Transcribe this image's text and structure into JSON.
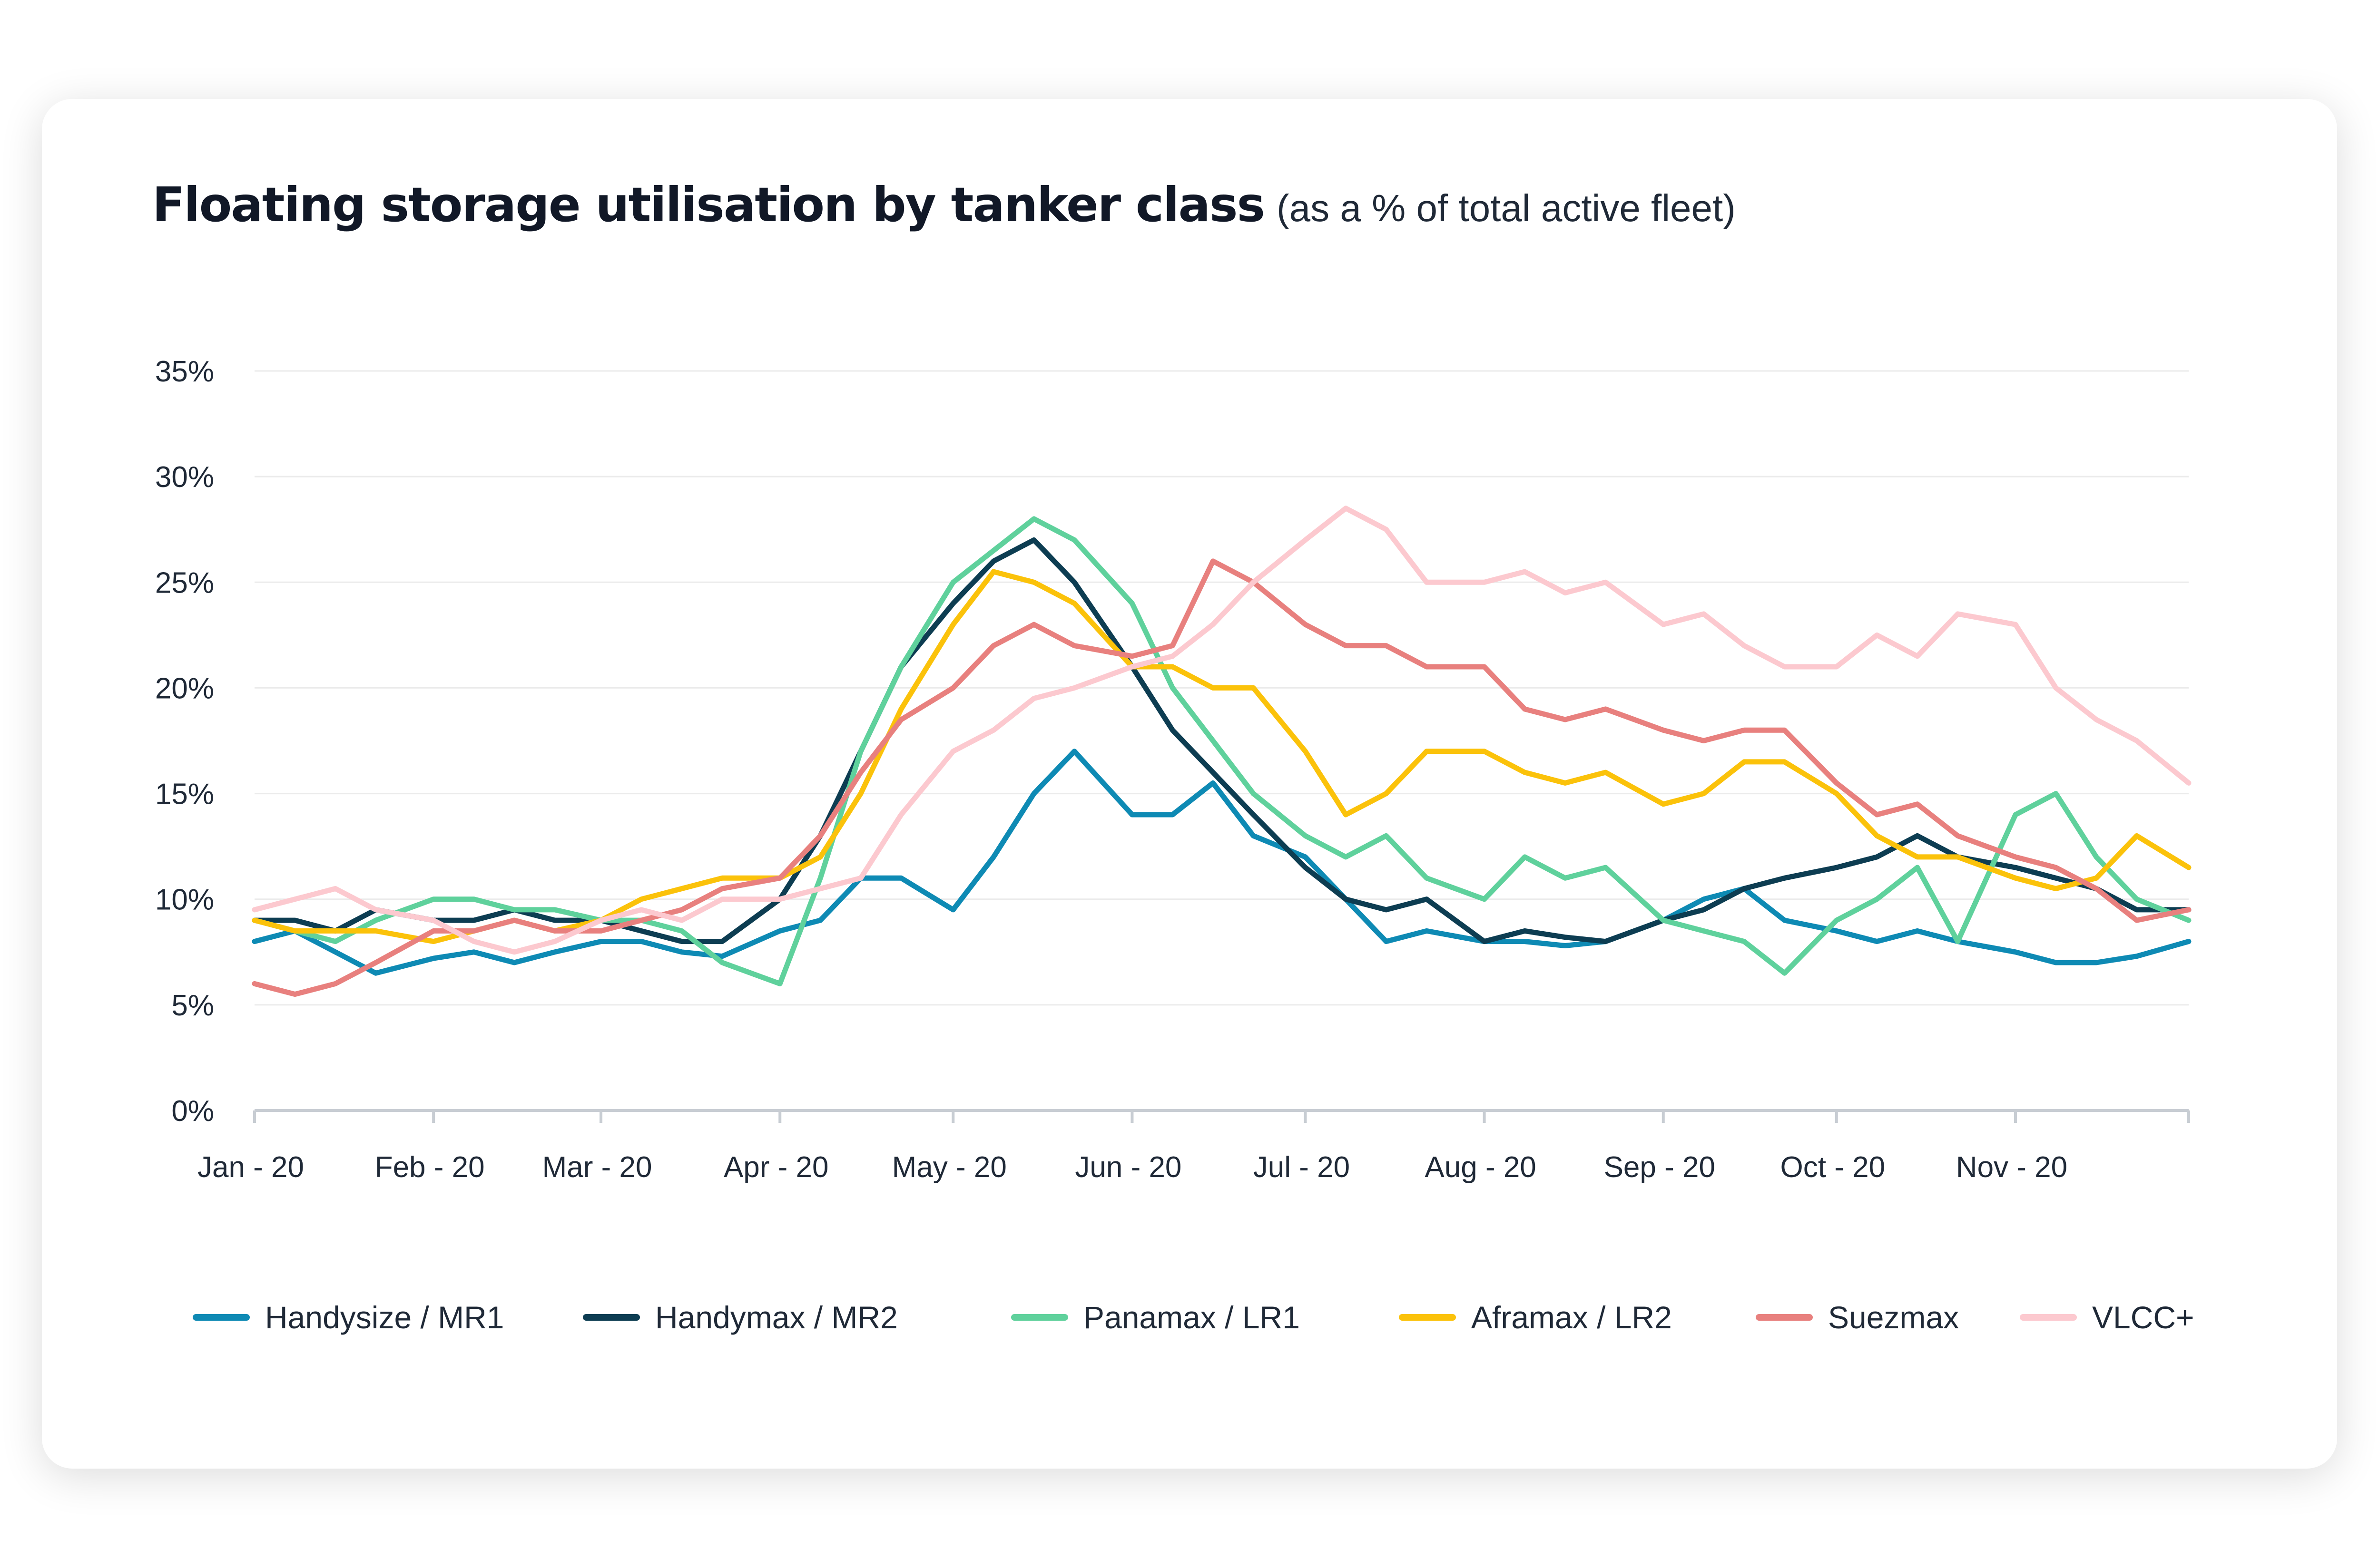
{
  "title": "Floating storage utilisation by tanker class",
  "subtitle": "(as a % of total active fleet)",
  "colors": {
    "Handysize / MR1": "#0e8ab4",
    "Handymax / MR2": "#0d3d52",
    "Panamax / LR1": "#5fd19c",
    "Aframax / LR2": "#fbc20a",
    "Suezmax": "#e8807e",
    "VLCC+": "#fcc9cf"
  },
  "chart_data": {
    "type": "line",
    "ylim": [
      0,
      35
    ],
    "y_ticks": [
      "0%",
      "5%",
      "10%",
      "15%",
      "20%",
      "25%",
      "30%",
      "35%"
    ],
    "x_ticks": [
      "Jan - 20",
      "Feb - 20",
      "Mar - 20",
      "Apr - 20",
      "May - 20",
      "Jun - 20",
      "Jul - 20",
      "Aug - 20",
      "Sep - 20",
      "Oct - 20",
      "Nov - 20"
    ],
    "x_range": [
      "2020-01-01",
      "2020-12-01"
    ],
    "grid": "horizontal",
    "legend": "bottom",
    "series": [
      {
        "name": "Handysize / MR1",
        "points": [
          [
            "2020-01-01",
            8
          ],
          [
            "2020-01-08",
            8.5
          ],
          [
            "2020-01-15",
            7.5
          ],
          [
            "2020-01-22",
            6.5
          ],
          [
            "2020-02-01",
            7.2
          ],
          [
            "2020-02-08",
            7.5
          ],
          [
            "2020-02-15",
            7
          ],
          [
            "2020-02-22",
            7.5
          ],
          [
            "2020-03-01",
            8
          ],
          [
            "2020-03-08",
            8
          ],
          [
            "2020-03-15",
            7.5
          ],
          [
            "2020-03-22",
            7.3
          ],
          [
            "2020-04-01",
            8.5
          ],
          [
            "2020-04-08",
            9
          ],
          [
            "2020-04-15",
            11
          ],
          [
            "2020-04-22",
            11
          ],
          [
            "2020-05-01",
            9.5
          ],
          [
            "2020-05-08",
            12
          ],
          [
            "2020-05-15",
            15
          ],
          [
            "2020-05-22",
            17
          ],
          [
            "2020-06-01",
            14
          ],
          [
            "2020-06-08",
            14
          ],
          [
            "2020-06-15",
            15.5
          ],
          [
            "2020-06-22",
            13
          ],
          [
            "2020-07-01",
            12
          ],
          [
            "2020-07-08",
            10
          ],
          [
            "2020-07-15",
            8
          ],
          [
            "2020-07-22",
            8.5
          ],
          [
            "2020-08-01",
            8
          ],
          [
            "2020-08-08",
            8
          ],
          [
            "2020-08-15",
            7.8
          ],
          [
            "2020-08-22",
            8
          ],
          [
            "2020-09-01",
            9
          ],
          [
            "2020-09-08",
            10
          ],
          [
            "2020-09-15",
            10.5
          ],
          [
            "2020-09-22",
            9
          ],
          [
            "2020-10-01",
            8.5
          ],
          [
            "2020-10-08",
            8
          ],
          [
            "2020-10-15",
            8.5
          ],
          [
            "2020-10-22",
            8
          ],
          [
            "2020-11-01",
            7.5
          ],
          [
            "2020-11-08",
            7
          ],
          [
            "2020-11-15",
            7
          ],
          [
            "2020-11-22",
            7.3
          ],
          [
            "2020-12-01",
            8
          ]
        ]
      },
      {
        "name": "Handymax / MR2",
        "points": [
          [
            "2020-01-01",
            9
          ],
          [
            "2020-01-08",
            9
          ],
          [
            "2020-01-15",
            8.5
          ],
          [
            "2020-01-22",
            9.5
          ],
          [
            "2020-02-01",
            9
          ],
          [
            "2020-02-08",
            9
          ],
          [
            "2020-02-15",
            9.5
          ],
          [
            "2020-02-22",
            9
          ],
          [
            "2020-03-01",
            9
          ],
          [
            "2020-03-08",
            8.5
          ],
          [
            "2020-03-15",
            8
          ],
          [
            "2020-03-22",
            8
          ],
          [
            "2020-04-01",
            10
          ],
          [
            "2020-04-08",
            13
          ],
          [
            "2020-04-15",
            17
          ],
          [
            "2020-04-22",
            21
          ],
          [
            "2020-05-01",
            24
          ],
          [
            "2020-05-08",
            26
          ],
          [
            "2020-05-15",
            27
          ],
          [
            "2020-05-22",
            25
          ],
          [
            "2020-06-01",
            21
          ],
          [
            "2020-06-08",
            18
          ],
          [
            "2020-06-15",
            16
          ],
          [
            "2020-06-22",
            14
          ],
          [
            "2020-07-01",
            11.5
          ],
          [
            "2020-07-08",
            10
          ],
          [
            "2020-07-15",
            9.5
          ],
          [
            "2020-07-22",
            10
          ],
          [
            "2020-08-01",
            8
          ],
          [
            "2020-08-08",
            8.5
          ],
          [
            "2020-08-15",
            8.2
          ],
          [
            "2020-08-22",
            8
          ],
          [
            "2020-09-01",
            9
          ],
          [
            "2020-09-08",
            9.5
          ],
          [
            "2020-09-15",
            10.5
          ],
          [
            "2020-09-22",
            11
          ],
          [
            "2020-10-01",
            11.5
          ],
          [
            "2020-10-08",
            12
          ],
          [
            "2020-10-15",
            13
          ],
          [
            "2020-10-22",
            12
          ],
          [
            "2020-11-01",
            11.5
          ],
          [
            "2020-11-08",
            11
          ],
          [
            "2020-11-15",
            10.5
          ],
          [
            "2020-11-22",
            9.5
          ],
          [
            "2020-12-01",
            9.5
          ]
        ]
      },
      {
        "name": "Panamax / LR1",
        "points": [
          [
            "2020-01-01",
            9
          ],
          [
            "2020-01-08",
            8.5
          ],
          [
            "2020-01-15",
            8
          ],
          [
            "2020-01-22",
            9
          ],
          [
            "2020-02-01",
            10
          ],
          [
            "2020-02-08",
            10
          ],
          [
            "2020-02-15",
            9.5
          ],
          [
            "2020-02-22",
            9.5
          ],
          [
            "2020-03-01",
            9
          ],
          [
            "2020-03-08",
            9
          ],
          [
            "2020-03-15",
            8.5
          ],
          [
            "2020-03-22",
            7
          ],
          [
            "2020-04-01",
            6
          ],
          [
            "2020-04-08",
            11
          ],
          [
            "2020-04-15",
            17
          ],
          [
            "2020-04-22",
            21
          ],
          [
            "2020-05-01",
            25
          ],
          [
            "2020-05-08",
            26.5
          ],
          [
            "2020-05-15",
            28
          ],
          [
            "2020-05-22",
            27
          ],
          [
            "2020-06-01",
            24
          ],
          [
            "2020-06-08",
            20
          ],
          [
            "2020-06-15",
            17.5
          ],
          [
            "2020-06-22",
            15
          ],
          [
            "2020-07-01",
            13
          ],
          [
            "2020-07-08",
            12
          ],
          [
            "2020-07-15",
            13
          ],
          [
            "2020-07-22",
            11
          ],
          [
            "2020-08-01",
            10
          ],
          [
            "2020-08-08",
            12
          ],
          [
            "2020-08-15",
            11
          ],
          [
            "2020-08-22",
            11.5
          ],
          [
            "2020-09-01",
            9
          ],
          [
            "2020-09-08",
            8.5
          ],
          [
            "2020-09-15",
            8
          ],
          [
            "2020-09-22",
            6.5
          ],
          [
            "2020-10-01",
            9
          ],
          [
            "2020-10-08",
            10
          ],
          [
            "2020-10-15",
            11.5
          ],
          [
            "2020-10-22",
            8
          ],
          [
            "2020-11-01",
            14
          ],
          [
            "2020-11-08",
            15
          ],
          [
            "2020-11-15",
            12
          ],
          [
            "2020-11-22",
            10
          ],
          [
            "2020-12-01",
            9
          ]
        ]
      },
      {
        "name": "Aframax / LR2",
        "points": [
          [
            "2020-01-01",
            9
          ],
          [
            "2020-01-08",
            8.5
          ],
          [
            "2020-01-15",
            8.5
          ],
          [
            "2020-01-22",
            8.5
          ],
          [
            "2020-02-01",
            8
          ],
          [
            "2020-02-08",
            8.5
          ],
          [
            "2020-02-15",
            9
          ],
          [
            "2020-02-22",
            8.5
          ],
          [
            "2020-03-01",
            9
          ],
          [
            "2020-03-08",
            10
          ],
          [
            "2020-03-15",
            10.5
          ],
          [
            "2020-03-22",
            11
          ],
          [
            "2020-04-01",
            11
          ],
          [
            "2020-04-08",
            12
          ],
          [
            "2020-04-15",
            15
          ],
          [
            "2020-04-22",
            19
          ],
          [
            "2020-05-01",
            23
          ],
          [
            "2020-05-08",
            25.5
          ],
          [
            "2020-05-15",
            25
          ],
          [
            "2020-05-22",
            24
          ],
          [
            "2020-06-01",
            21
          ],
          [
            "2020-06-08",
            21
          ],
          [
            "2020-06-15",
            20
          ],
          [
            "2020-06-22",
            20
          ],
          [
            "2020-07-01",
            17
          ],
          [
            "2020-07-08",
            14
          ],
          [
            "2020-07-15",
            15
          ],
          [
            "2020-07-22",
            17
          ],
          [
            "2020-08-01",
            17
          ],
          [
            "2020-08-08",
            16
          ],
          [
            "2020-08-15",
            15.5
          ],
          [
            "2020-08-22",
            16
          ],
          [
            "2020-09-01",
            14.5
          ],
          [
            "2020-09-08",
            15
          ],
          [
            "2020-09-15",
            16.5
          ],
          [
            "2020-09-22",
            16.5
          ],
          [
            "2020-10-01",
            15
          ],
          [
            "2020-10-08",
            13
          ],
          [
            "2020-10-15",
            12
          ],
          [
            "2020-10-22",
            12
          ],
          [
            "2020-11-01",
            11
          ],
          [
            "2020-11-08",
            10.5
          ],
          [
            "2020-11-15",
            11
          ],
          [
            "2020-11-22",
            13
          ],
          [
            "2020-12-01",
            11.5
          ]
        ]
      },
      {
        "name": "Suezmax",
        "points": [
          [
            "2020-01-01",
            6
          ],
          [
            "2020-01-08",
            5.5
          ],
          [
            "2020-01-15",
            6
          ],
          [
            "2020-01-22",
            7
          ],
          [
            "2020-02-01",
            8.5
          ],
          [
            "2020-02-08",
            8.5
          ],
          [
            "2020-02-15",
            9
          ],
          [
            "2020-02-22",
            8.5
          ],
          [
            "2020-03-01",
            8.5
          ],
          [
            "2020-03-08",
            9
          ],
          [
            "2020-03-15",
            9.5
          ],
          [
            "2020-03-22",
            10.5
          ],
          [
            "2020-04-01",
            11
          ],
          [
            "2020-04-08",
            13
          ],
          [
            "2020-04-15",
            16
          ],
          [
            "2020-04-22",
            18.5
          ],
          [
            "2020-05-01",
            20
          ],
          [
            "2020-05-08",
            22
          ],
          [
            "2020-05-15",
            23
          ],
          [
            "2020-05-22",
            22
          ],
          [
            "2020-06-01",
            21.5
          ],
          [
            "2020-06-08",
            22
          ],
          [
            "2020-06-15",
            26
          ],
          [
            "2020-06-22",
            25
          ],
          [
            "2020-07-01",
            23
          ],
          [
            "2020-07-08",
            22
          ],
          [
            "2020-07-15",
            22
          ],
          [
            "2020-07-22",
            21
          ],
          [
            "2020-08-01",
            21
          ],
          [
            "2020-08-08",
            19
          ],
          [
            "2020-08-15",
            18.5
          ],
          [
            "2020-08-22",
            19
          ],
          [
            "2020-09-01",
            18
          ],
          [
            "2020-09-08",
            17.5
          ],
          [
            "2020-09-15",
            18
          ],
          [
            "2020-09-22",
            18
          ],
          [
            "2020-10-01",
            15.5
          ],
          [
            "2020-10-08",
            14
          ],
          [
            "2020-10-15",
            14.5
          ],
          [
            "2020-10-22",
            13
          ],
          [
            "2020-11-01",
            12
          ],
          [
            "2020-11-08",
            11.5
          ],
          [
            "2020-11-15",
            10.5
          ],
          [
            "2020-11-22",
            9
          ],
          [
            "2020-12-01",
            9.5
          ]
        ]
      },
      {
        "name": "VLCC+",
        "points": [
          [
            "2020-01-01",
            9.5
          ],
          [
            "2020-01-08",
            10
          ],
          [
            "2020-01-15",
            10.5
          ],
          [
            "2020-01-22",
            9.5
          ],
          [
            "2020-02-01",
            9
          ],
          [
            "2020-02-08",
            8
          ],
          [
            "2020-02-15",
            7.5
          ],
          [
            "2020-02-22",
            8
          ],
          [
            "2020-03-01",
            9
          ],
          [
            "2020-03-08",
            9.5
          ],
          [
            "2020-03-15",
            9
          ],
          [
            "2020-03-22",
            10
          ],
          [
            "2020-04-01",
            10
          ],
          [
            "2020-04-08",
            10.5
          ],
          [
            "2020-04-15",
            11
          ],
          [
            "2020-04-22",
            14
          ],
          [
            "2020-05-01",
            17
          ],
          [
            "2020-05-08",
            18
          ],
          [
            "2020-05-15",
            19.5
          ],
          [
            "2020-05-22",
            20
          ],
          [
            "2020-06-01",
            21
          ],
          [
            "2020-06-08",
            21.5
          ],
          [
            "2020-06-15",
            23
          ],
          [
            "2020-06-22",
            25
          ],
          [
            "2020-07-01",
            27
          ],
          [
            "2020-07-08",
            28.5
          ],
          [
            "2020-07-15",
            27.5
          ],
          [
            "2020-07-22",
            25
          ],
          [
            "2020-08-01",
            25
          ],
          [
            "2020-08-08",
            25.5
          ],
          [
            "2020-08-15",
            24.5
          ],
          [
            "2020-08-22",
            25
          ],
          [
            "2020-09-01",
            23
          ],
          [
            "2020-09-08",
            23.5
          ],
          [
            "2020-09-15",
            22
          ],
          [
            "2020-09-22",
            21
          ],
          [
            "2020-10-01",
            21
          ],
          [
            "2020-10-08",
            22.5
          ],
          [
            "2020-10-15",
            21.5
          ],
          [
            "2020-10-22",
            23.5
          ],
          [
            "2020-11-01",
            23
          ],
          [
            "2020-11-08",
            20
          ],
          [
            "2020-11-15",
            18.5
          ],
          [
            "2020-11-22",
            17.5
          ],
          [
            "2020-12-01",
            15.5
          ]
        ]
      }
    ]
  }
}
